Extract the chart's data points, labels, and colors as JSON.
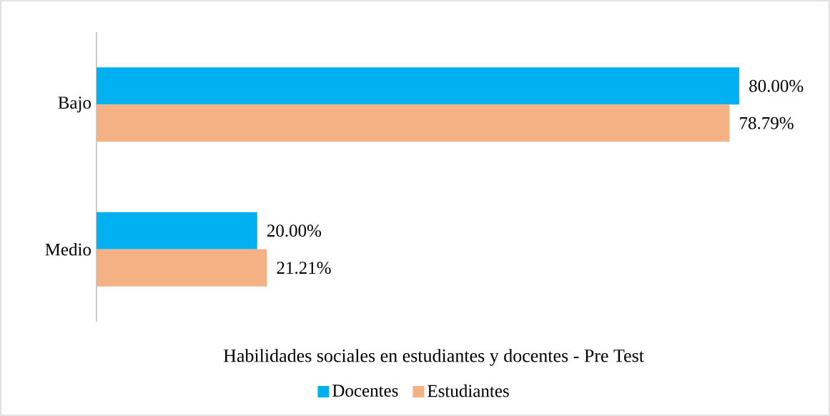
{
  "chart_data": {
    "type": "bar",
    "orientation": "horizontal",
    "title": "Habilidades sociales en estudiantes y docentes - Pre Test",
    "categories": [
      "Bajo",
      "Medio"
    ],
    "series": [
      {
        "name": "Docentes",
        "color": "#00b0f0",
        "values": [
          80.0,
          20.0
        ],
        "value_labels": [
          "80.00%",
          "20.00%"
        ]
      },
      {
        "name": "Estudiantes",
        "color": "#f4b183",
        "values": [
          78.79,
          21.21
        ],
        "value_labels": [
          "78.79%",
          "21.21%"
        ]
      }
    ],
    "legend": "bottom"
  }
}
